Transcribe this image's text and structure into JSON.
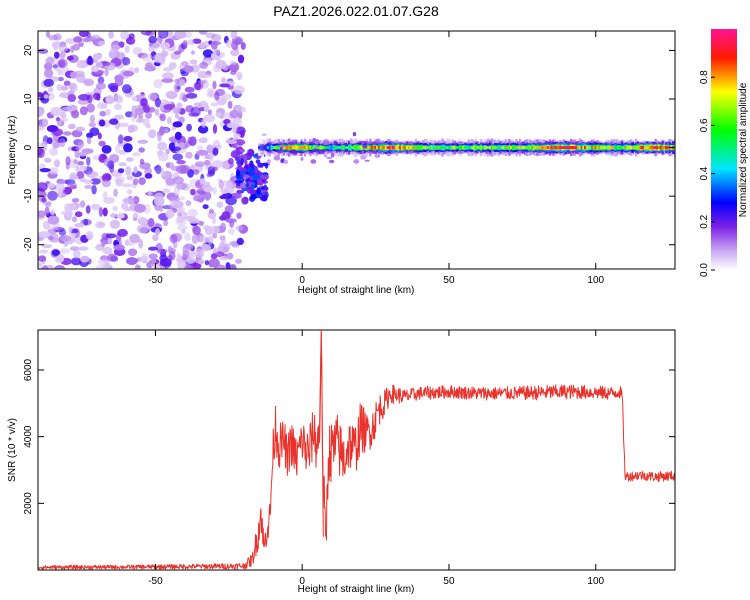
{
  "title": "PAZ1.2026.022.01.07.G28",
  "chart_data": [
    {
      "type": "heatmap",
      "title": "PAZ1.2026.022.01.07.G28",
      "xlabel": "Height of straight line (km)",
      "ylabel": "Frequency (Hz)",
      "xlim": [
        -90,
        127
      ],
      "ylim": [
        -25,
        24
      ],
      "xticks": [
        -50,
        0,
        50,
        100
      ],
      "yticks": [
        -20,
        -10,
        0,
        10,
        20
      ],
      "colorbar": {
        "label": "Normalized spectral amplitude",
        "range": [
          0,
          1
        ],
        "ticks": [
          0.0,
          0.2,
          0.4,
          0.6,
          0.8
        ],
        "tick_labels": [
          "0.0",
          "0.2",
          "0.4",
          "0.6",
          "0.8"
        ],
        "colors": [
          "#ffffff",
          "#8a2be2",
          "#0000ff",
          "#00e5ff",
          "#00ff00",
          "#ffff00",
          "#ff0000",
          "#ff1493"
        ]
      },
      "noise_region": {
        "x_range": [
          -90,
          -20
        ],
        "freq_range": [
          -25,
          24
        ],
        "amplitude_range": [
          0.05,
          0.25
        ]
      },
      "transition_region": {
        "x_range": [
          -22,
          -12
        ],
        "freq_range": [
          -6,
          6
        ]
      },
      "signal_band": {
        "frequency_hz": 0,
        "x_range": [
          -15,
          127
        ],
        "profile": [
          {
            "x": -15,
            "amplitude": 0.2
          },
          {
            "x": -5,
            "amplitude": 0.85
          },
          {
            "x": 0,
            "amplitude": 0.8
          },
          {
            "x": 10,
            "amplitude": 0.45
          },
          {
            "x": 22,
            "amplitude": 0.75
          },
          {
            "x": 30,
            "amplitude": 0.9
          },
          {
            "x": 45,
            "amplitude": 0.55
          },
          {
            "x": 60,
            "amplitude": 0.6
          },
          {
            "x": 75,
            "amplitude": 0.7
          },
          {
            "x": 88,
            "amplitude": 0.95
          },
          {
            "x": 95,
            "amplitude": 0.8
          },
          {
            "x": 108,
            "amplitude": 0.65
          },
          {
            "x": 120,
            "amplitude": 0.95
          },
          {
            "x": 127,
            "amplitude": 0.8
          }
        ]
      }
    },
    {
      "type": "line",
      "xlabel": "Height of straight line (km)",
      "ylabel": "SNR (10 * v/v)",
      "xlim": [
        -90,
        127
      ],
      "ylim": [
        0,
        7200
      ],
      "xticks": [
        -50,
        0,
        50,
        100
      ],
      "yticks": [
        2000,
        4000,
        6000
      ],
      "series": [
        {
          "name": "SNR",
          "color": "#e8322b",
          "x": [
            -90,
            -60,
            -30,
            -20,
            -17,
            -15,
            -14,
            -13,
            -12,
            -11,
            -10,
            -9,
            -8,
            -6,
            -5,
            -4,
            -2,
            0,
            2,
            4,
            5,
            6,
            6.5,
            7,
            8,
            9,
            10,
            12,
            14,
            16,
            18,
            20,
            22,
            24,
            26,
            28,
            30,
            35,
            40,
            50,
            60,
            70,
            80,
            90,
            100,
            105,
            108,
            109,
            110,
            115,
            120,
            127
          ],
          "y": [
            80,
            90,
            110,
            120,
            300,
            1100,
            1750,
            600,
            1300,
            1500,
            3500,
            4400,
            3700,
            3900,
            3200,
            3900,
            3300,
            3900,
            3400,
            4200,
            3700,
            4200,
            7200,
            3000,
            700,
            3600,
            3500,
            3800,
            3300,
            3800,
            3600,
            4300,
            4100,
            4300,
            4800,
            5000,
            5300,
            5200,
            5300,
            5350,
            5300,
            5300,
            5320,
            5350,
            5330,
            5300,
            5350,
            5250,
            2800,
            2850,
            2800,
            2830
          ],
          "noise": [
            60,
            60,
            80,
            100,
            200,
            500,
            600,
            400,
            500,
            600,
            600,
            800,
            700,
            600,
            700,
            700,
            700,
            700,
            900,
            700,
            900,
            800,
            0,
            1200,
            800,
            900,
            1000,
            900,
            900,
            800,
            800,
            800,
            600,
            600,
            500,
            400,
            300,
            220,
            200,
            200,
            200,
            200,
            220,
            220,
            200,
            200,
            200,
            200,
            150,
            150,
            150,
            150
          ]
        }
      ]
    }
  ]
}
